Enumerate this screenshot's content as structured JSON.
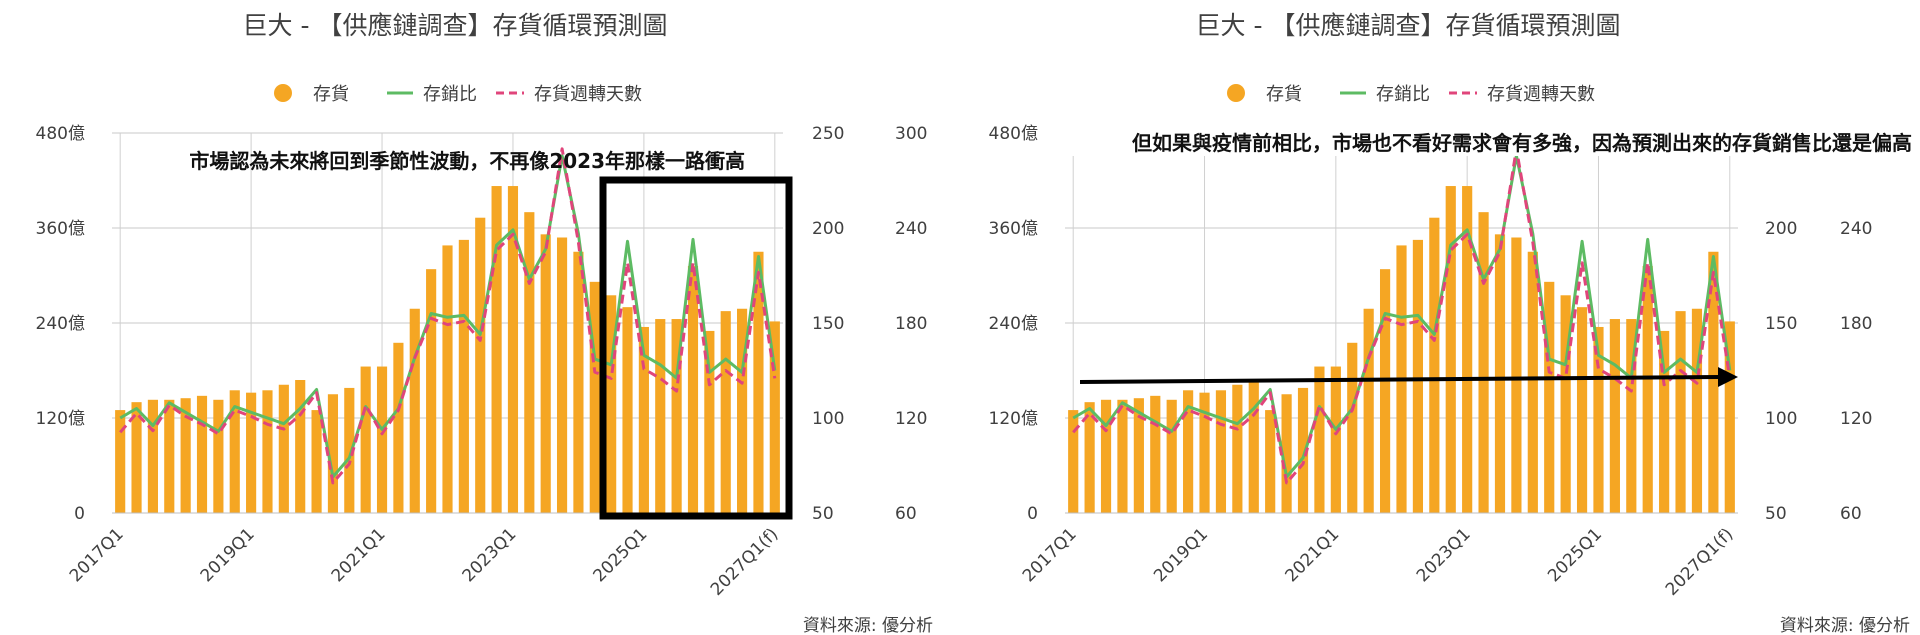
{
  "chart_data": [
    {
      "type": "bar+line",
      "title": "巨大 - 【供應鏈調查】存貨循環預測圖",
      "legend": [
        "存貨",
        "存銷比",
        "存貨週轉天數"
      ],
      "legend_placement": "top",
      "grid": "horizontal + vertical",
      "source": "資料來源: 優分析",
      "annotation": "市場認為未來將回到季節性波動，不再像2023年那樣一路衝高",
      "callout": "rectangle around 2024Q4–2027Q1(f)",
      "x": [
        "2017Q1",
        "2017Q2",
        "2017Q3",
        "2017Q4",
        "2018Q1",
        "2018Q2",
        "2018Q3",
        "2018Q4",
        "2019Q1",
        "2019Q2",
        "2019Q3",
        "2019Q4",
        "2020Q1",
        "2020Q2",
        "2020Q3",
        "2020Q4",
        "2021Q1",
        "2021Q2",
        "2021Q3",
        "2021Q4",
        "2022Q1",
        "2022Q2",
        "2022Q3",
        "2022Q4",
        "2023Q1",
        "2023Q2",
        "2023Q3",
        "2023Q4",
        "2024Q1",
        "2024Q2",
        "2024Q3",
        "2024Q4",
        "2025Q1",
        "2025Q2",
        "2025Q3",
        "2025Q4",
        "2026Q1",
        "2026Q2",
        "2026Q3",
        "2026Q4",
        "2027Q1(f)"
      ],
      "x_tick_labels": [
        "2017Q1",
        "2019Q1",
        "2021Q1",
        "2023Q1",
        "2025Q1",
        "2027Q1(f)"
      ],
      "axes": {
        "y_left": {
          "ticks": [
            "0",
            "120億",
            "240億",
            "360億",
            "480億"
          ],
          "range": [
            0,
            480
          ]
        },
        "y_right1": {
          "ticks": [
            "50",
            "100",
            "150",
            "200",
            "250"
          ],
          "range": [
            50,
            250
          ]
        },
        "y_right2": {
          "ticks": [
            "60",
            "120",
            "180",
            "240",
            "300"
          ],
          "range": [
            60,
            300
          ]
        }
      },
      "series": [
        {
          "name": "存貨",
          "axis": "y_left",
          "color": "#F5A623",
          "values": [
            130,
            140,
            143,
            143,
            145,
            148,
            143,
            155,
            152,
            155,
            162,
            168,
            130,
            150,
            158,
            185,
            185,
            215,
            258,
            308,
            338,
            345,
            373,
            413,
            413,
            380,
            352,
            348,
            330,
            292,
            275,
            260,
            235,
            245,
            245,
            312,
            230,
            255,
            258,
            330,
            242
          ]
        },
        {
          "name": "存銷比",
          "axis": "y_right1",
          "color": "#5DBB63",
          "values": [
            100,
            105,
            96,
            108,
            103,
            98,
            93,
            106,
            103,
            100,
            97,
            105,
            115,
            69,
            79,
            106,
            94,
            105,
            132,
            155,
            153,
            154,
            144,
            191,
            199,
            173,
            189,
            238,
            197,
            131,
            128,
            193,
            133,
            128,
            121,
            194,
            124,
            131,
            124,
            185,
            125
          ]
        },
        {
          "name": "存貨週轉天數",
          "axis": "y_right2",
          "color": "#E0457B",
          "values": [
            111,
            123,
            112,
            128,
            121,
            116,
            110,
            125,
            121,
            116,
            113,
            122,
            136,
            79,
            91,
            128,
            110,
            125,
            158,
            183,
            179,
            181,
            169,
            226,
            236,
            205,
            225,
            290,
            231,
            149,
            145,
            218,
            151,
            145,
            137,
            218,
            141,
            150,
            142,
            212,
            145
          ]
        }
      ]
    },
    {
      "type": "bar+line",
      "title": "巨大 - 【供應鏈調查】存貨循環預測圖",
      "legend": [
        "存貨",
        "存銷比",
        "存貨週轉天數"
      ],
      "legend_placement": "top",
      "grid": "horizontal + vertical",
      "source": "資料來源: 優分析",
      "annotation": "但如果與疫情前相比，市場也不看好需求會有多強，因為預測出來的存貨銷售比還是偏高",
      "callout": "arrow rising gently from 2017Q1 to 2027Q1(f)",
      "x_tick_labels": [
        "2017Q1",
        "2019Q1",
        "2021Q1",
        "2023Q1",
        "2025Q1",
        "2027Q1(f)"
      ],
      "axes": {
        "y_left": {
          "ticks": [
            "0",
            "120億",
            "240億",
            "360億",
            "480億"
          ],
          "range": [
            0,
            480
          ]
        },
        "y_right1": {
          "ticks": [
            "50",
            "100",
            "150",
            "200"
          ],
          "range": [
            50,
            250
          ]
        },
        "y_right2": {
          "ticks": [
            "60",
            "120",
            "180",
            "240"
          ],
          "range": [
            60,
            300
          ]
        }
      },
      "same_data_as_chart": 0
    }
  ]
}
